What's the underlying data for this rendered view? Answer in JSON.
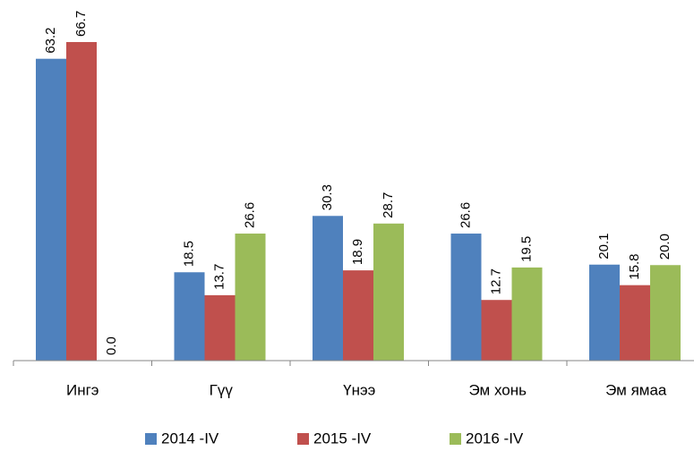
{
  "chart_data": {
    "type": "bar",
    "categories": [
      "Ингэ",
      "Гүү",
      "Үнээ",
      "Эм хонь",
      "Эм ямаа"
    ],
    "series": [
      {
        "name": "2014 -IV",
        "color": "#4f81bd",
        "values": [
          63.2,
          18.5,
          30.3,
          26.6,
          20.1
        ],
        "value_labels": [
          "63.2",
          "18.5",
          "30.3",
          "26.6",
          "20.1"
        ]
      },
      {
        "name": "2015 -IV",
        "color": "#c0504d",
        "values": [
          66.7,
          13.7,
          18.9,
          12.7,
          15.8
        ],
        "value_labels": [
          "66.7",
          "13.7",
          "18.9",
          "12.7",
          "15.8"
        ]
      },
      {
        "name": "2016 -IV",
        "color": "#9bbb59",
        "values": [
          0,
          26.6,
          28.7,
          19.5,
          20
        ],
        "value_labels": [
          "0.0",
          "26.6",
          "28.7",
          "19.5",
          "20.0"
        ]
      }
    ],
    "legend": "bottom"
  }
}
